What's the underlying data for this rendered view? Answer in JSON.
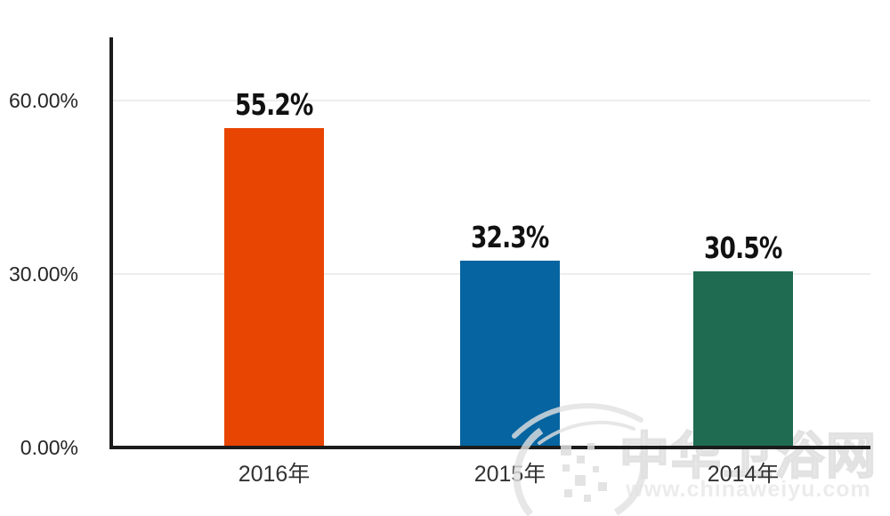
{
  "chart_data": {
    "type": "bar",
    "title": "",
    "xlabel": "",
    "ylabel": "",
    "categories": [
      "2016年",
      "2015年",
      "2014年"
    ],
    "values": [
      55.2,
      32.3,
      30.5
    ],
    "value_labels": [
      "55.2%",
      "32.3%",
      "30.5%"
    ],
    "bar_colors": [
      "#e84402",
      "#0664a0",
      "#1e6b52"
    ],
    "ylim": [
      0,
      60
    ],
    "y_ticks": [
      {
        "value": 60,
        "label": "60.00%"
      },
      {
        "value": 30,
        "label": "30.00%"
      },
      {
        "value": 0,
        "label": "0.00%"
      }
    ],
    "grid": true,
    "legend": false
  },
  "watermark": {
    "brand_text": "中华卫浴网",
    "url_text": "www.chinaweiyu.com"
  },
  "colors": {
    "axis": "#1c1c1c",
    "gridline": "#ededed",
    "tick_label": "#262626",
    "category_label": "#333333",
    "value_label": "#111111",
    "watermark": "#e7e7e7",
    "background": "#ffffff"
  }
}
